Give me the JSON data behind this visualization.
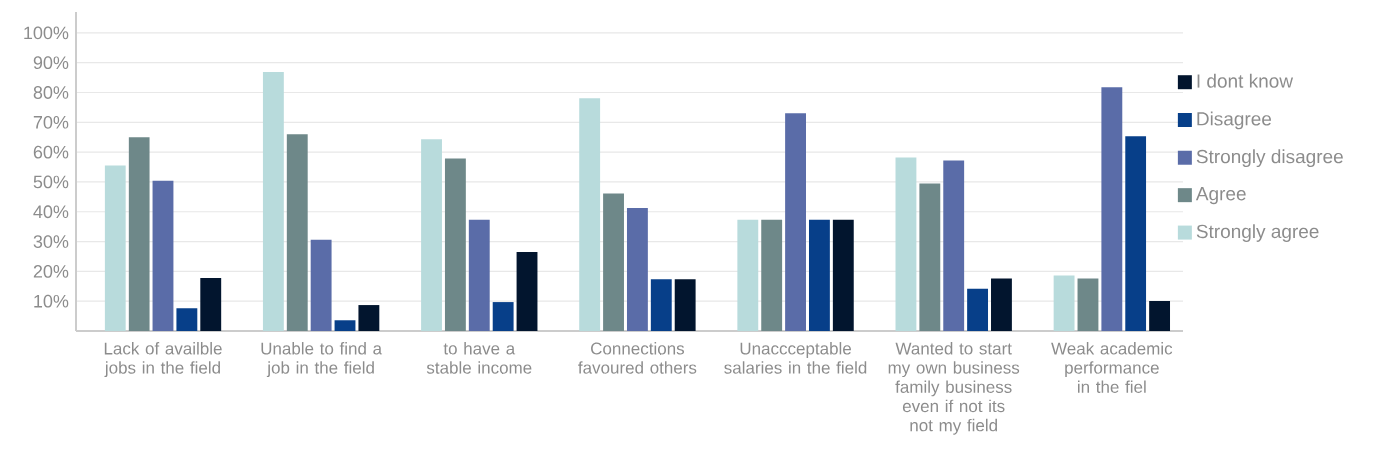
{
  "chart_data": {
    "type": "bar",
    "categories": [
      "Lack of availble jobs in the field",
      "Unable to find a job in the field",
      "to have a stable income",
      "Connections favoured others",
      "Unaccceptable salaries in the field",
      "Wanted to start my own business family business even if not its not my field",
      "Weak academic performance in the fiel"
    ],
    "series": [
      {
        "name": "Strongly agree",
        "color": "#b8dbdc",
        "values": [
          55.5,
          86.9,
          64.3,
          78.1,
          37.3,
          58.2,
          18.6
        ]
      },
      {
        "name": "Agree",
        "color": "#6e8889",
        "values": [
          65,
          66,
          57.9,
          46.1,
          37.3,
          49.5,
          17.6
        ]
      },
      {
        "name": "Strongly disagree",
        "color": "#5a6ca8",
        "values": [
          50.4,
          30.6,
          37.3,
          41.3,
          73,
          57.2,
          81.8
        ]
      },
      {
        "name": "Disagree",
        "color": "#073f89",
        "values": [
          7.6,
          3.6,
          9.7,
          17.4,
          37.3,
          14.2,
          65.3
        ]
      },
      {
        "name": "I dont know",
        "color": "#02152e",
        "values": [
          17.8,
          8.7,
          26.5,
          17.4,
          37.3,
          17.6,
          10.1
        ]
      }
    ],
    "ylim": [
      0,
      107
    ],
    "yticks": [
      {
        "value": 10,
        "label": "10%"
      },
      {
        "value": 20,
        "label": "20%"
      },
      {
        "value": 30,
        "label": "30%"
      },
      {
        "value": 40,
        "label": "40%"
      },
      {
        "value": 50,
        "label": "50%"
      },
      {
        "value": 60,
        "label": "60%"
      },
      {
        "value": 70,
        "label": "70%"
      },
      {
        "value": 80,
        "label": "80%"
      },
      {
        "value": 90,
        "label": "90%"
      },
      {
        "value": 100,
        "label": "100%"
      }
    ],
    "grid": "y",
    "legend": "right"
  }
}
